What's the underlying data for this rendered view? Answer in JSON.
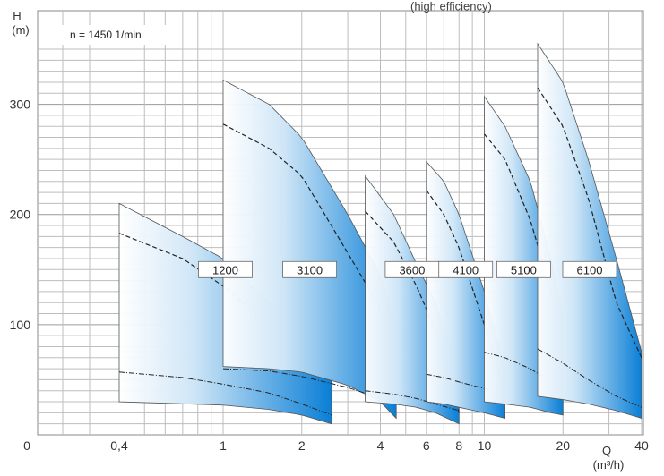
{
  "chart_data": {
    "type": "area",
    "title_fragment": "(high efficiency)",
    "speed_note": "n = 1450 1/min",
    "ylabel": "H",
    "ylabel_unit": "(m)",
    "xlabel": "Q",
    "xlabel_unit": "(m³/h)",
    "x_scale": "log",
    "ylim": [
      0,
      350
    ],
    "y_ticks": [
      {
        "v": 100,
        "label": "100"
      },
      {
        "v": 200,
        "label": "200"
      },
      {
        "v": 300,
        "label": "300"
      }
    ],
    "x_ticks": [
      {
        "v": 0.4,
        "label": "0,4"
      },
      {
        "v": 1,
        "label": "1"
      },
      {
        "v": 2,
        "label": "2"
      },
      {
        "v": 4,
        "label": "4"
      },
      {
        "v": 6,
        "label": "6"
      },
      {
        "v": 8,
        "label": "8"
      },
      {
        "v": 10,
        "label": "10"
      },
      {
        "v": 20,
        "label": "20"
      },
      {
        "v": 40,
        "label": "40"
      }
    ],
    "origin_label": "0",
    "grid": true,
    "series": [
      {
        "name": "1200",
        "q_min": 0.4,
        "q_max": 2.6,
        "upper": [
          [
            0.4,
            210
          ],
          [
            0.7,
            180
          ],
          [
            1.0,
            160
          ],
          [
            1.5,
            120
          ],
          [
            2.0,
            95
          ],
          [
            2.6,
            65
          ]
        ],
        "lower": [
          [
            0.4,
            30
          ],
          [
            1.0,
            27
          ],
          [
            1.5,
            23
          ],
          [
            2.0,
            18
          ],
          [
            2.6,
            10
          ]
        ],
        "max_curve": [
          [
            0.4,
            183
          ],
          [
            0.7,
            160
          ],
          [
            1.0,
            135
          ],
          [
            1.5,
            100
          ],
          [
            2.0,
            75
          ],
          [
            2.6,
            55
          ]
        ],
        "min_curve": [
          [
            0.4,
            57
          ],
          [
            0.7,
            52
          ],
          [
            1.0,
            46
          ],
          [
            1.5,
            38
          ],
          [
            2.0,
            28
          ],
          [
            2.6,
            18
          ]
        ]
      },
      {
        "name": "3100",
        "q_min": 1.0,
        "q_max": 4.6,
        "upper": [
          [
            1.0,
            322
          ],
          [
            1.5,
            300
          ],
          [
            2.0,
            270
          ],
          [
            3.0,
            200
          ],
          [
            4.0,
            145
          ],
          [
            4.6,
            100
          ]
        ],
        "lower": [
          [
            1.0,
            62
          ],
          [
            1.5,
            60
          ],
          [
            2.0,
            57
          ],
          [
            3.0,
            45
          ],
          [
            4.0,
            30
          ],
          [
            4.6,
            15
          ]
        ],
        "max_curve": [
          [
            1.0,
            282
          ],
          [
            1.5,
            260
          ],
          [
            2.0,
            235
          ],
          [
            3.0,
            165
          ],
          [
            4.0,
            115
          ],
          [
            4.6,
            90
          ]
        ],
        "min_curve": [
          [
            1.0,
            60
          ],
          [
            1.5,
            58
          ],
          [
            2.0,
            53
          ],
          [
            3.0,
            43
          ],
          [
            4.0,
            33
          ],
          [
            4.6,
            28
          ]
        ]
      },
      {
        "name": "3600",
        "q_min": 3.5,
        "q_max": 8.0,
        "upper": [
          [
            3.5,
            235
          ],
          [
            4.5,
            200
          ],
          [
            5.5,
            155
          ],
          [
            6.5,
            120
          ],
          [
            8.0,
            55
          ]
        ],
        "lower": [
          [
            3.5,
            30
          ],
          [
            4.5,
            28
          ],
          [
            5.5,
            25
          ],
          [
            6.5,
            20
          ],
          [
            8.0,
            10
          ]
        ],
        "max_curve": [
          [
            3.5,
            203
          ],
          [
            4.5,
            175
          ],
          [
            5.5,
            135
          ],
          [
            6.5,
            95
          ],
          [
            8.0,
            20
          ]
        ],
        "min_curve": [
          [
            3.5,
            40
          ],
          [
            4.5,
            37
          ],
          [
            5.5,
            33
          ],
          [
            6.5,
            28
          ],
          [
            8.0,
            22
          ]
        ]
      },
      {
        "name": "4100",
        "q_min": 6.0,
        "q_max": 12.0,
        "upper": [
          [
            6.0,
            248
          ],
          [
            7.0,
            230
          ],
          [
            8.0,
            200
          ],
          [
            10.0,
            130
          ],
          [
            12.0,
            60
          ]
        ],
        "lower": [
          [
            6.0,
            30
          ],
          [
            7.0,
            28
          ],
          [
            8.0,
            25
          ],
          [
            10.0,
            20
          ],
          [
            12.0,
            15
          ]
        ],
        "max_curve": [
          [
            6.0,
            222
          ],
          [
            7.0,
            200
          ],
          [
            8.0,
            170
          ],
          [
            10.0,
            100
          ],
          [
            12.0,
            40
          ]
        ],
        "min_curve": [
          [
            6.0,
            55
          ],
          [
            7.0,
            52
          ],
          [
            8.0,
            48
          ],
          [
            10.0,
            42
          ],
          [
            12.0,
            35
          ]
        ]
      },
      {
        "name": "5100",
        "q_min": 10.0,
        "q_max": 20.0,
        "upper": [
          [
            10.0,
            307
          ],
          [
            12.0,
            280
          ],
          [
            15.0,
            230
          ],
          [
            18.0,
            160
          ],
          [
            20.0,
            110
          ]
        ],
        "lower": [
          [
            10.0,
            30
          ],
          [
            12.0,
            28
          ],
          [
            15.0,
            25
          ],
          [
            18.0,
            20
          ],
          [
            20.0,
            18
          ]
        ],
        "max_curve": [
          [
            10.0,
            273
          ],
          [
            12.0,
            250
          ],
          [
            15.0,
            195
          ],
          [
            18.0,
            130
          ],
          [
            20.0,
            85
          ]
        ],
        "min_curve": [
          [
            10.0,
            75
          ],
          [
            12.0,
            70
          ],
          [
            15.0,
            60
          ],
          [
            18.0,
            48
          ],
          [
            20.0,
            40
          ]
        ]
      },
      {
        "name": "6100",
        "q_min": 16.0,
        "q_max": 40.0,
        "upper": [
          [
            16.0,
            355
          ],
          [
            20.0,
            320
          ],
          [
            25.0,
            250
          ],
          [
            32.0,
            160
          ],
          [
            40.0,
            75
          ]
        ],
        "lower": [
          [
            16.0,
            35
          ],
          [
            20.0,
            32
          ],
          [
            25.0,
            28
          ],
          [
            32.0,
            22
          ],
          [
            40.0,
            15
          ]
        ],
        "max_curve": [
          [
            16.0,
            315
          ],
          [
            20.0,
            280
          ],
          [
            25.0,
            215
          ],
          [
            32.0,
            120
          ],
          [
            40.0,
            70
          ]
        ],
        "min_curve": [
          [
            16.0,
            78
          ],
          [
            20.0,
            65
          ],
          [
            25.0,
            50
          ],
          [
            32.0,
            35
          ],
          [
            40.0,
            25
          ]
        ]
      }
    ]
  }
}
